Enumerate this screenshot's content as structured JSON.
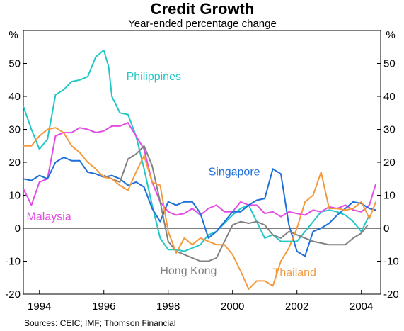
{
  "chart_data": {
    "type": "line",
    "title": "Credit Growth",
    "subtitle": "Year-ended percentage change",
    "unit_left": "%",
    "unit_right": "%",
    "source": "Sources: CEIC; IMF; Thomson Financial",
    "xlim": [
      1993.5,
      2004.6
    ],
    "ylim": [
      -20,
      60
    ],
    "x_ticks": [
      1994,
      1996,
      1998,
      2000,
      2002,
      2004
    ],
    "x_tick_labels": [
      "1994",
      "1996",
      "1998",
      "2000",
      "2002",
      "2004"
    ],
    "y_ticks": [
      -20,
      -10,
      0,
      10,
      20,
      30,
      40,
      50
    ],
    "y_tick_labels": [
      "-20",
      "-10",
      "0",
      "10",
      "20",
      "30",
      "40",
      "50"
    ],
    "grid": false,
    "legend": "inline labels",
    "series": [
      {
        "name": "Philippines",
        "color": "#22c8c8",
        "label_pos": [
          1996.7,
          45
        ],
        "x": [
          1993.5,
          1993.75,
          1994,
          1994.25,
          1994.5,
          1994.75,
          1995,
          1995.25,
          1995.5,
          1995.75,
          1996,
          1996.15,
          1996.25,
          1996.5,
          1996.75,
          1997,
          1997.25,
          1997.5,
          1997.75,
          1998,
          1998.25,
          1998.5,
          1998.75,
          1999,
          1999.25,
          1999.5,
          1999.75,
          2000,
          2000.25,
          2000.5,
          2000.75,
          2001,
          2001.25,
          2001.5,
          2001.75,
          2002,
          2002.25,
          2002.5,
          2002.75,
          2003,
          2003.25,
          2003.5,
          2003.75,
          2004,
          2004.25
        ],
        "y": [
          37,
          30,
          24,
          27,
          40.5,
          42,
          44.5,
          45,
          46,
          52,
          54,
          49,
          40,
          35,
          34.5,
          28,
          18,
          7,
          -3,
          -6.5,
          -6.5,
          -7,
          -6,
          -5,
          -2,
          -1,
          1.5,
          4,
          6,
          7,
          2,
          -3,
          -2,
          -4,
          -4,
          -4,
          -1,
          2,
          5,
          5.5,
          5,
          4,
          2,
          -1,
          4
        ]
      },
      {
        "name": "Malaysia",
        "color": "#e34ce3",
        "label_pos": [
          1993.6,
          2.5
        ],
        "x": [
          1993.5,
          1993.75,
          1994,
          1994.25,
          1994.5,
          1994.75,
          1995,
          1995.25,
          1995.5,
          1995.75,
          1996,
          1996.25,
          1996.5,
          1996.75,
          1997,
          1997.25,
          1997.5,
          1997.75,
          1998,
          1998.25,
          1998.5,
          1998.75,
          1999,
          1999.25,
          1999.5,
          1999.75,
          2000,
          2000.25,
          2000.5,
          2000.75,
          2001,
          2001.25,
          2001.5,
          2001.75,
          2002,
          2002.25,
          2002.5,
          2002.75,
          2003,
          2003.25,
          2003.5,
          2003.75,
          2004,
          2004.25,
          2004.45
        ],
        "y": [
          12,
          7,
          14,
          15,
          28,
          29,
          29,
          30.5,
          30,
          29,
          29.5,
          31,
          31,
          32,
          28,
          24,
          14,
          8,
          5,
          4,
          4.5,
          6,
          4,
          6,
          7,
          5,
          5,
          8,
          7,
          7,
          4.5,
          5,
          3.5,
          5,
          4.5,
          4,
          5.5,
          5,
          6.5,
          6,
          7,
          5.5,
          5,
          7,
          13.5
        ]
      },
      {
        "name": "Singapore",
        "color": "#1e6fd9",
        "label_pos": [
          1999.25,
          16
        ],
        "x": [
          1993.5,
          1993.75,
          1994,
          1994.25,
          1994.5,
          1994.75,
          1995,
          1995.25,
          1995.5,
          1995.75,
          1996,
          1996.25,
          1996.5,
          1996.75,
          1997,
          1997.25,
          1997.5,
          1997.75,
          1998,
          1998.25,
          1998.5,
          1998.75,
          1999,
          1999.25,
          1999.5,
          1999.75,
          2000,
          2000.25,
          2000.5,
          2000.75,
          2001,
          2001.25,
          2001.5,
          2001.75,
          2002,
          2002.25,
          2002.5,
          2002.75,
          2003,
          2003.25,
          2003.5,
          2003.75,
          2004,
          2004.25,
          2004.45
        ],
        "y": [
          15,
          14.5,
          16,
          15,
          20,
          21.5,
          20.5,
          20.5,
          17,
          16.5,
          15.5,
          16,
          15,
          13,
          14,
          12.5,
          6,
          2,
          8,
          7,
          8,
          8,
          4.5,
          -3,
          -1,
          2,
          5,
          5,
          7,
          8.5,
          9,
          18,
          16.5,
          1,
          -7,
          -8.5,
          -1,
          0,
          1.5,
          4,
          6,
          8,
          7.5,
          6,
          5.5
        ]
      },
      {
        "name": "Hong Kong",
        "color": "#828282",
        "label_pos": [
          1997.75,
          -14
        ],
        "x": [
          1996,
          1996.25,
          1996.5,
          1996.75,
          1997,
          1997.25,
          1997.5,
          1997.75,
          1998,
          1998.25,
          1998.5,
          1998.75,
          1999,
          1999.25,
          1999.5,
          1999.75,
          2000,
          2000.25,
          2000.5,
          2000.75,
          2001,
          2001.25,
          2001.5,
          2001.75,
          2002,
          2002.25,
          2002.5,
          2002.75,
          2003,
          2003.25,
          2003.5,
          2003.75,
          2004,
          2004.2
        ],
        "y": [
          16,
          15,
          14,
          21,
          22.5,
          25,
          19,
          8,
          -4,
          -7,
          -8,
          -9,
          -10,
          -10,
          -9,
          -4,
          1,
          2,
          1.5,
          2,
          1,
          -2,
          -3,
          -1,
          -2,
          -3,
          -4,
          -4.5,
          -5,
          -5,
          -5,
          -3,
          -1.5,
          1
        ]
      },
      {
        "name": "Thailand",
        "color": "#f4993d",
        "label_pos": [
          2001.25,
          -14.5
        ],
        "x": [
          1993.5,
          1993.75,
          1994,
          1994.25,
          1994.5,
          1994.75,
          1995,
          1995.25,
          1995.5,
          1995.75,
          1996,
          1996.25,
          1996.5,
          1996.75,
          1997,
          1997.25,
          1997.5,
          1997.75,
          1998,
          1998.25,
          1998.5,
          1998.75,
          1999,
          1999.25,
          1999.5,
          1999.75,
          2000,
          2000.25,
          2000.5,
          2000.75,
          2001,
          2001.25,
          2001.5,
          2001.75,
          2002,
          2002.25,
          2002.5,
          2002.75,
          2003,
          2003.25,
          2003.5,
          2003.75,
          2004,
          2004.25,
          2004.45
        ],
        "y": [
          25,
          25,
          28,
          30,
          30.5,
          29,
          25,
          23,
          20,
          18,
          15.5,
          15,
          13,
          11.5,
          17,
          22,
          14,
          13,
          -1,
          -7.5,
          -3,
          -5,
          -3,
          -4,
          -5,
          -5,
          -8,
          -13,
          -18.5,
          -16,
          -16,
          -17.5,
          -10,
          -6,
          0,
          8,
          10,
          17,
          6,
          6,
          5.5,
          6,
          8,
          3,
          8
        ]
      }
    ]
  }
}
